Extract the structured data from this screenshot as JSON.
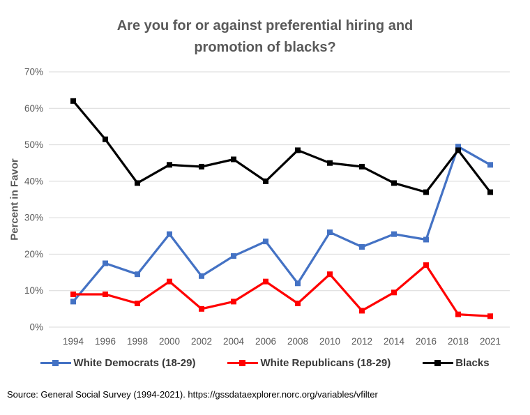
{
  "title": {
    "line1": "Are you for or against preferential hiring and",
    "line2": "promotion of blacks?"
  },
  "y_axis_label": "Percent in Favor",
  "source": "Source: General Social Survey (1994-2021). https://gssdataexplorer.norc.org/variables/vfilter",
  "legend": [
    {
      "label": "White Democrats (18-29)",
      "color": "#4472C4"
    },
    {
      "label": "White Republicans (18-29)",
      "color": "#FF0000"
    },
    {
      "label": "Blacks",
      "color": "#000000"
    }
  ],
  "colors": {
    "gridline": "#D9D9D9",
    "tick_label": "#595959",
    "title_text": "#595959"
  },
  "chart_data": {
    "type": "line",
    "title": "Are you for or against preferential hiring and promotion of blacks?",
    "xlabel": "",
    "ylabel": "Percent in Favor",
    "ylim": [
      0,
      70
    ],
    "ytick_step": 10,
    "ytick_suffix": "%",
    "grid": true,
    "legend_position": "bottom",
    "marker": "square",
    "categories": [
      1994,
      1996,
      1998,
      2000,
      2002,
      2004,
      2006,
      2008,
      2010,
      2012,
      2014,
      2016,
      2018,
      2021
    ],
    "series": [
      {
        "name": "White Democrats (18-29)",
        "color": "#4472C4",
        "values": [
          7,
          17.5,
          14.5,
          25.5,
          14,
          19.5,
          23.5,
          12,
          26,
          22,
          25.5,
          24,
          49.5,
          44.5
        ]
      },
      {
        "name": "White Republicans (18-29)",
        "color": "#FF0000",
        "values": [
          9,
          9,
          6.5,
          12.5,
          5,
          7,
          12.5,
          6.5,
          14.5,
          4.5,
          9.5,
          17,
          3.5,
          3
        ]
      },
      {
        "name": "Blacks",
        "color": "#000000",
        "values": [
          62,
          51.5,
          39.5,
          44.5,
          44,
          46,
          40,
          48.5,
          45,
          44,
          39.5,
          37,
          48.5,
          37
        ]
      }
    ]
  }
}
